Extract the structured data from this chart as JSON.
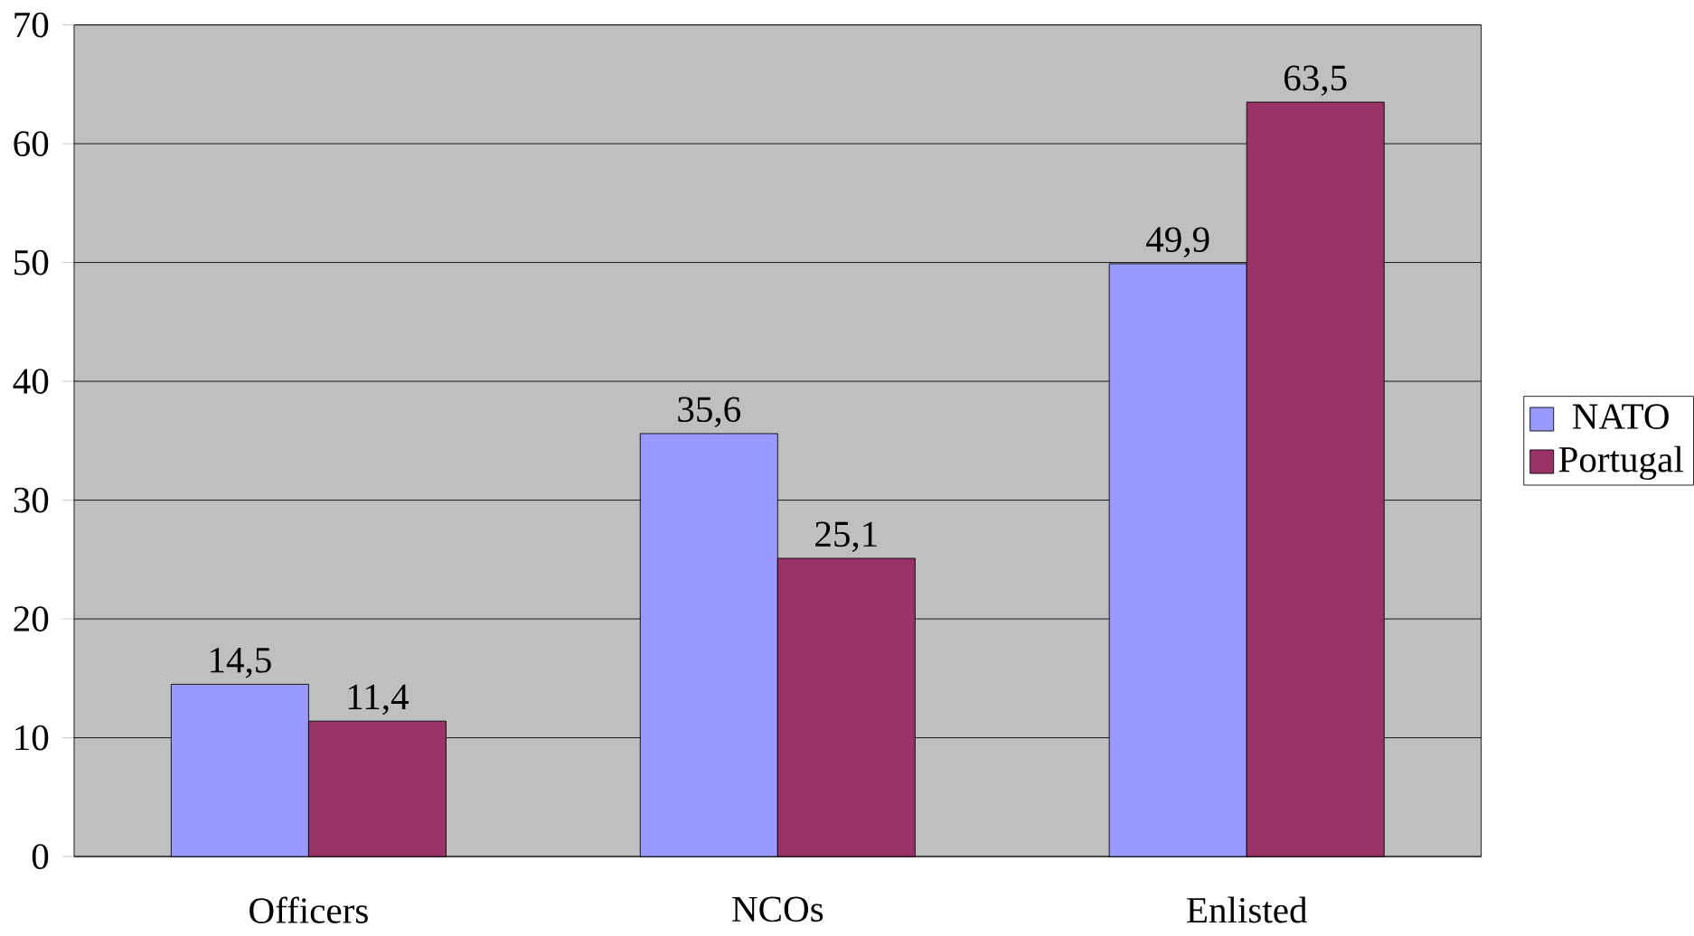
{
  "chart_data": {
    "type": "bar",
    "categories": [
      "Officers",
      "NCOs",
      "Enlisted"
    ],
    "series": [
      {
        "name": "NATO",
        "color": "#9999ff",
        "values": [
          14.5,
          35.6,
          49.9
        ],
        "value_labels": [
          "14,5",
          "35,6",
          "49,9"
        ]
      },
      {
        "name": "Portugal",
        "color": "#993366",
        "values": [
          11.4,
          25.1,
          63.5
        ],
        "value_labels": [
          "11,4",
          "25,1",
          "63,5"
        ]
      }
    ],
    "ylim": [
      0,
      70
    ],
    "yticks": [
      0,
      10,
      20,
      30,
      40,
      50,
      60,
      70
    ],
    "grid": "y",
    "legend": "right"
  }
}
